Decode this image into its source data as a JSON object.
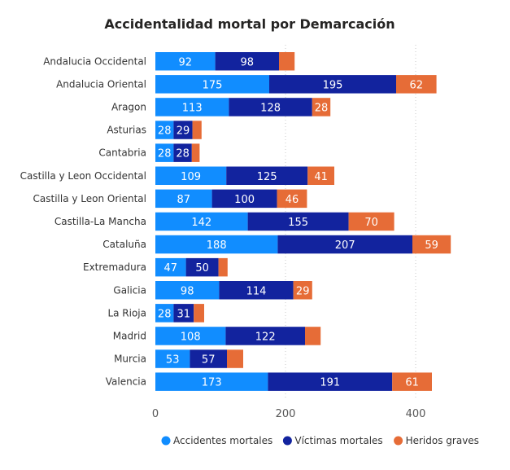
{
  "chart_data": {
    "type": "bar",
    "orientation": "horizontal",
    "stacked": true,
    "title": "Accidentalidad mortal por Demarcación",
    "categories": [
      "Andalucia Occidental",
      "Andalucia Oriental",
      "Aragon",
      "Asturias",
      "Cantabria",
      "Castilla y Leon Occidental",
      "Castilla y Leon Oriental",
      "Castilla-La Mancha",
      "Cataluña",
      "Extremadura",
      "Galicia",
      "La Rioja",
      "Madrid",
      "Murcia",
      "Valencia"
    ],
    "series": [
      {
        "name": "Accidentes mortales",
        "color": "#118DFF",
        "values": [
          92,
          175,
          113,
          28,
          28,
          109,
          87,
          142,
          188,
          47,
          98,
          28,
          108,
          53,
          173
        ]
      },
      {
        "name": "Víctimas mortales",
        "color": "#12239E",
        "values": [
          98,
          195,
          128,
          29,
          28,
          125,
          100,
          155,
          207,
          50,
          114,
          31,
          122,
          57,
          191
        ]
      },
      {
        "name": "Heridos graves",
        "color": "#E66C37",
        "values": [
          24,
          62,
          28,
          14,
          12,
          41,
          46,
          70,
          59,
          14,
          29,
          16,
          24,
          25,
          61
        ]
      }
    ],
    "label_min": 26,
    "xlim": [
      0,
      460
    ],
    "xticks": [
      0,
      200,
      400
    ],
    "grid": true,
    "legend_position": "bottom-right"
  }
}
